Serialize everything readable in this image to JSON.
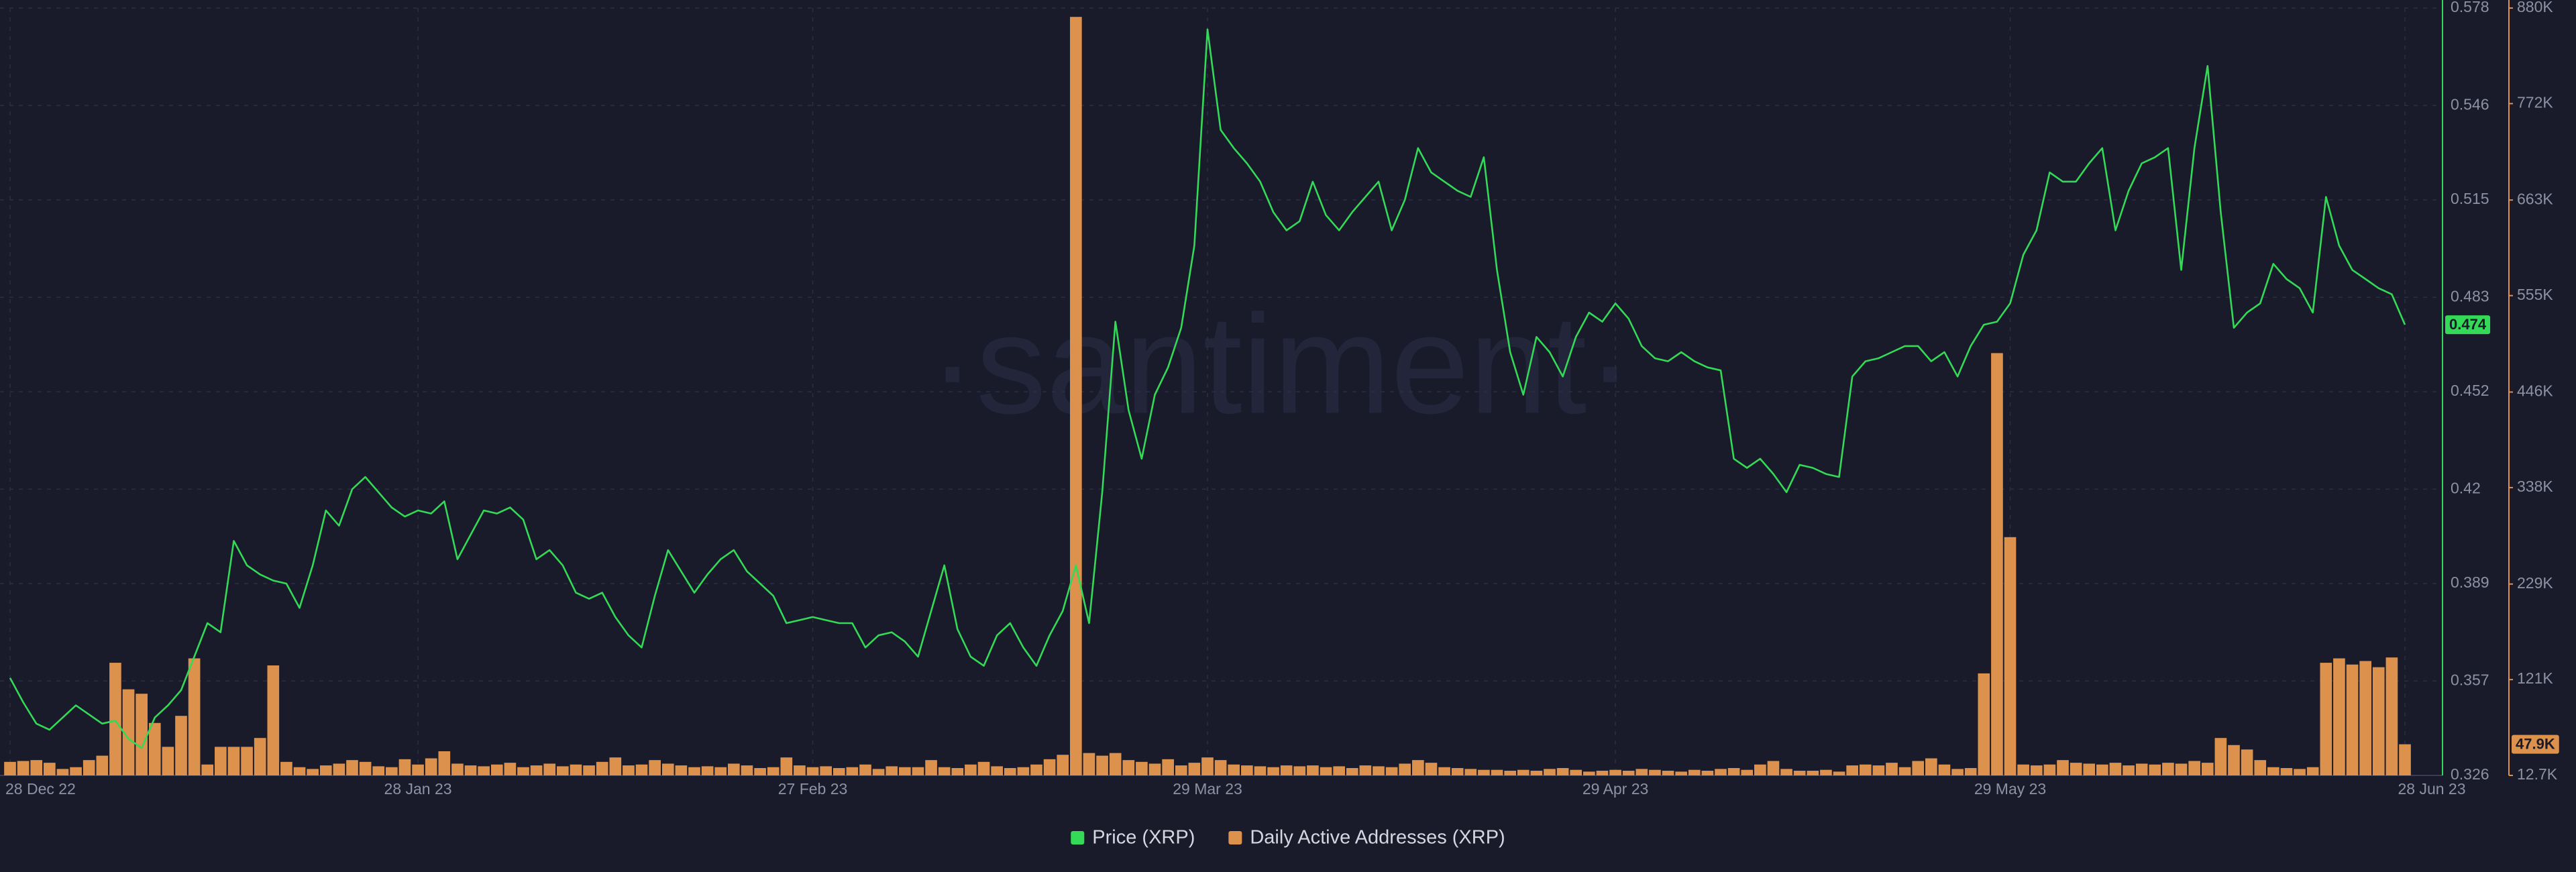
{
  "chart_data": {
    "type": "combo",
    "watermark": "·santiment·",
    "x": [
      "2022-12-28",
      "2022-12-29",
      "2022-12-30",
      "2022-12-31",
      "2023-01-01",
      "2023-01-02",
      "2023-01-03",
      "2023-01-04",
      "2023-01-05",
      "2023-01-06",
      "2023-01-07",
      "2023-01-08",
      "2023-01-09",
      "2023-01-10",
      "2023-01-11",
      "2023-01-12",
      "2023-01-13",
      "2023-01-14",
      "2023-01-15",
      "2023-01-16",
      "2023-01-17",
      "2023-01-18",
      "2023-01-19",
      "2023-01-20",
      "2023-01-21",
      "2023-01-22",
      "2023-01-23",
      "2023-01-24",
      "2023-01-25",
      "2023-01-26",
      "2023-01-27",
      "2023-01-28",
      "2023-01-29",
      "2023-01-30",
      "2023-01-31",
      "2023-02-01",
      "2023-02-02",
      "2023-02-03",
      "2023-02-04",
      "2023-02-05",
      "2023-02-06",
      "2023-02-07",
      "2023-02-08",
      "2023-02-09",
      "2023-02-10",
      "2023-02-11",
      "2023-02-12",
      "2023-02-13",
      "2023-02-14",
      "2023-02-15",
      "2023-02-16",
      "2023-02-17",
      "2023-02-18",
      "2023-02-19",
      "2023-02-20",
      "2023-02-21",
      "2023-02-22",
      "2023-02-23",
      "2023-02-24",
      "2023-02-25",
      "2023-02-26",
      "2023-02-27",
      "2023-02-28",
      "2023-03-01",
      "2023-03-02",
      "2023-03-03",
      "2023-03-04",
      "2023-03-05",
      "2023-03-06",
      "2023-03-07",
      "2023-03-08",
      "2023-03-09",
      "2023-03-10",
      "2023-03-11",
      "2023-03-12",
      "2023-03-13",
      "2023-03-14",
      "2023-03-15",
      "2023-03-16",
      "2023-03-17",
      "2023-03-18",
      "2023-03-19",
      "2023-03-20",
      "2023-03-21",
      "2023-03-22",
      "2023-03-23",
      "2023-03-24",
      "2023-03-25",
      "2023-03-26",
      "2023-03-27",
      "2023-03-28",
      "2023-03-29",
      "2023-03-30",
      "2023-03-31",
      "2023-04-01",
      "2023-04-02",
      "2023-04-03",
      "2023-04-04",
      "2023-04-05",
      "2023-04-06",
      "2023-04-07",
      "2023-04-08",
      "2023-04-09",
      "2023-04-10",
      "2023-04-11",
      "2023-04-12",
      "2023-04-13",
      "2023-04-14",
      "2023-04-15",
      "2023-04-16",
      "2023-04-17",
      "2023-04-18",
      "2023-04-19",
      "2023-04-20",
      "2023-04-21",
      "2023-04-22",
      "2023-04-23",
      "2023-04-24",
      "2023-04-25",
      "2023-04-26",
      "2023-04-27",
      "2023-04-28",
      "2023-04-29",
      "2023-04-30",
      "2023-05-01",
      "2023-05-02",
      "2023-05-03",
      "2023-05-04",
      "2023-05-05",
      "2023-05-06",
      "2023-05-07",
      "2023-05-08",
      "2023-05-09",
      "2023-05-10",
      "2023-05-11",
      "2023-05-12",
      "2023-05-13",
      "2023-05-14",
      "2023-05-15",
      "2023-05-16",
      "2023-05-17",
      "2023-05-18",
      "2023-05-19",
      "2023-05-20",
      "2023-05-21",
      "2023-05-22",
      "2023-05-23",
      "2023-05-24",
      "2023-05-25",
      "2023-05-26",
      "2023-05-27",
      "2023-05-28",
      "2023-05-29",
      "2023-05-30",
      "2023-05-31",
      "2023-06-01",
      "2023-06-02",
      "2023-06-03",
      "2023-06-04",
      "2023-06-05",
      "2023-06-06",
      "2023-06-07",
      "2023-06-08",
      "2023-06-09",
      "2023-06-10",
      "2023-06-11",
      "2023-06-12",
      "2023-06-13",
      "2023-06-14",
      "2023-06-15",
      "2023-06-16",
      "2023-06-17",
      "2023-06-18",
      "2023-06-19",
      "2023-06-20",
      "2023-06-21",
      "2023-06-22",
      "2023-06-23",
      "2023-06-24",
      "2023-06-25",
      "2023-06-26",
      "2023-06-27",
      "2023-06-28"
    ],
    "xlim": [
      "2022-12-28",
      "2023-06-28"
    ],
    "xticks": [
      {
        "value": "2022-12-28",
        "label": "28 Dec 22"
      },
      {
        "value": "2023-01-28",
        "label": "28 Jan 23"
      },
      {
        "value": "2023-02-27",
        "label": "27 Feb 23"
      },
      {
        "value": "2023-03-29",
        "label": "29 Mar 23"
      },
      {
        "value": "2023-04-29",
        "label": "29 Apr 23"
      },
      {
        "value": "2023-05-29",
        "label": "29 May 23"
      },
      {
        "value": "2023-06-28",
        "label": "28 Jun 23"
      }
    ],
    "ylim": [
      0.326,
      0.578
    ],
    "yticks": [
      0.326,
      0.357,
      0.389,
      0.42,
      0.452,
      0.483,
      0.515,
      0.546,
      0.578
    ],
    "y2lim": [
      12700,
      880000
    ],
    "y2ticks": [
      {
        "value": 12700,
        "label": "12.7K"
      },
      {
        "value": 121000,
        "label": "121K"
      },
      {
        "value": 229000,
        "label": "229K"
      },
      {
        "value": 338000,
        "label": "338K"
      },
      {
        "value": 446000,
        "label": "446K"
      },
      {
        "value": 555000,
        "label": "555K"
      },
      {
        "value": 663000,
        "label": "663K"
      },
      {
        "value": 772000,
        "label": "772K"
      },
      {
        "value": 880000,
        "label": "880K"
      }
    ],
    "grid": true,
    "legend": "bottom",
    "series": [
      {
        "name": "Price (XRP)",
        "type": "line",
        "color": "#33d957",
        "axis": "y",
        "last_value": 0.474,
        "values": [
          0.358,
          0.35,
          0.343,
          0.341,
          0.345,
          0.349,
          0.346,
          0.343,
          0.344,
          0.338,
          0.335,
          0.345,
          0.349,
          0.354,
          0.365,
          0.376,
          0.373,
          0.403,
          0.395,
          0.392,
          0.39,
          0.389,
          0.381,
          0.395,
          0.413,
          0.408,
          0.42,
          0.424,
          0.419,
          0.414,
          0.411,
          0.413,
          0.412,
          0.416,
          0.397,
          0.405,
          0.413,
          0.412,
          0.414,
          0.41,
          0.397,
          0.4,
          0.395,
          0.386,
          0.384,
          0.386,
          0.378,
          0.372,
          0.368,
          0.385,
          0.4,
          0.393,
          0.386,
          0.392,
          0.397,
          0.4,
          0.393,
          0.389,
          0.385,
          0.376,
          0.377,
          0.378,
          0.377,
          0.376,
          0.376,
          0.368,
          0.372,
          0.373,
          0.37,
          0.365,
          0.38,
          0.395,
          0.374,
          0.365,
          0.362,
          0.372,
          0.376,
          0.368,
          0.362,
          0.372,
          0.38,
          0.395,
          0.376,
          0.419,
          0.475,
          0.446,
          0.43,
          0.451,
          0.46,
          0.473,
          0.5,
          0.571,
          0.538,
          0.532,
          0.527,
          0.521,
          0.511,
          0.505,
          0.508,
          0.521,
          0.51,
          0.505,
          0.511,
          0.516,
          0.521,
          0.505,
          0.515,
          0.532,
          0.524,
          0.521,
          0.518,
          0.516,
          0.529,
          0.492,
          0.465,
          0.451,
          0.47,
          0.465,
          0.457,
          0.47,
          0.478,
          0.475,
          0.481,
          0.476,
          0.467,
          0.463,
          0.462,
          0.465,
          0.462,
          0.46,
          0.459,
          0.43,
          0.427,
          0.43,
          0.425,
          0.419,
          0.428,
          0.427,
          0.425,
          0.424,
          0.457,
          0.462,
          0.463,
          0.465,
          0.467,
          0.467,
          0.462,
          0.465,
          0.457,
          0.467,
          0.474,
          0.475,
          0.481,
          0.497,
          0.505,
          0.524,
          0.521,
          0.521,
          0.527,
          0.532,
          0.505,
          0.518,
          0.527,
          0.529,
          0.532,
          0.492,
          0.532,
          0.559,
          0.511,
          0.473,
          0.478,
          0.481,
          0.494,
          0.489,
          0.486,
          0.478,
          0.516,
          0.5,
          0.492,
          0.489,
          0.486,
          0.484,
          0.474
        ]
      },
      {
        "name": "Daily Active Addresses (XRP)",
        "type": "bar",
        "color": "#dc924c",
        "axis": "y2",
        "last_value": {
          "value": 47900,
          "label": "47.9K"
        },
        "values": [
          28000,
          29000,
          30000,
          27000,
          20000,
          22000,
          30000,
          35000,
          140000,
          110000,
          105000,
          72000,
          45000,
          80000,
          145000,
          25000,
          45000,
          45000,
          45000,
          55000,
          137000,
          28000,
          22000,
          20000,
          24000,
          26000,
          30000,
          28000,
          23000,
          22000,
          31000,
          25000,
          32000,
          40000,
          26000,
          24000,
          23000,
          25000,
          27000,
          22000,
          24000,
          26000,
          23000,
          25000,
          24000,
          28000,
          33000,
          24000,
          25000,
          30000,
          26000,
          24000,
          22000,
          23000,
          22000,
          26000,
          24000,
          21000,
          22000,
          33000,
          24000,
          22000,
          23000,
          21000,
          22000,
          25000,
          20000,
          23000,
          22000,
          22000,
          30000,
          22000,
          21000,
          25000,
          28000,
          23000,
          21000,
          22000,
          25000,
          31000,
          36000,
          870000,
          38000,
          35000,
          38000,
          30000,
          28000,
          26000,
          31000,
          24000,
          27000,
          33000,
          30000,
          25000,
          24000,
          23000,
          22000,
          24000,
          23000,
          24000,
          22000,
          23000,
          21000,
          24000,
          23000,
          22000,
          26000,
          30000,
          27000,
          22000,
          21000,
          20000,
          19000,
          19000,
          18000,
          19000,
          18000,
          20000,
          21000,
          19000,
          17000,
          18000,
          19000,
          18000,
          20000,
          19000,
          18000,
          17000,
          19000,
          18000,
          20000,
          21000,
          19000,
          25000,
          29000,
          20000,
          18000,
          18000,
          19000,
          17000,
          24000,
          25000,
          24000,
          27000,
          22000,
          29000,
          32000,
          25000,
          20000,
          21000,
          128000,
          490000,
          282000,
          25000,
          24000,
          25000,
          30000,
          27000,
          26000,
          25000,
          27000,
          24000,
          26000,
          25000,
          27000,
          26000,
          29000,
          27000,
          55000,
          47000,
          42000,
          30000,
          22000,
          21000,
          20000,
          22000,
          140000,
          145000,
          138000,
          142000,
          135000,
          146000,
          47900
        ]
      }
    ]
  }
}
